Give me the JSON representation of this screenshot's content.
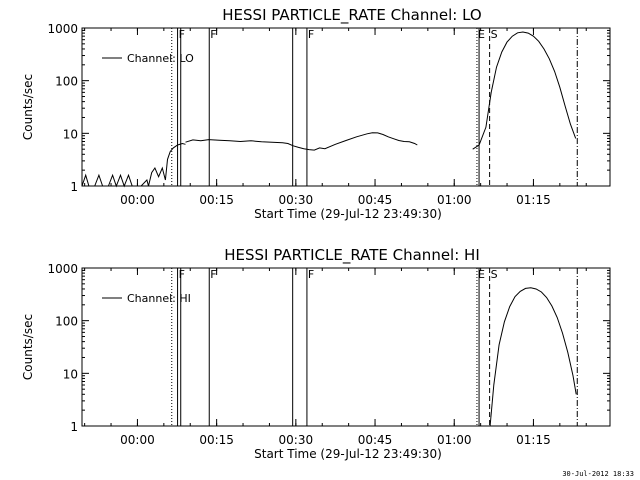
{
  "chart_data": [
    {
      "type": "line",
      "title": "HESSI PARTICLE_RATE Channel: LO",
      "xlabel": "Start Time (29-Jul-12 23:49:30)",
      "ylabel": "Counts/sec",
      "yscale": "log",
      "ylim": [
        1,
        1000
      ],
      "xlim_minutes_from_start": [
        0,
        100
      ],
      "x_ticks": [
        {
          "t": 10.5,
          "label": "00:00"
        },
        {
          "t": 25.5,
          "label": "00:15"
        },
        {
          "t": 40.5,
          "label": "00:30"
        },
        {
          "t": 55.5,
          "label": "00:45"
        },
        {
          "t": 70.5,
          "label": "01:00"
        },
        {
          "t": 85.5,
          "label": "01:15"
        }
      ],
      "y_ticks": [
        {
          "v": 1,
          "label": "1"
        },
        {
          "v": 10,
          "label": "10"
        },
        {
          "v": 100,
          "label": "100"
        },
        {
          "v": 1000,
          "label": "1000"
        }
      ],
      "legend": {
        "position": "top-left",
        "entries": [
          "Channel: LO"
        ]
      },
      "markers": [
        {
          "t": 17.0,
          "style": "dotted",
          "label": ""
        },
        {
          "t": 18.1,
          "style": "solid",
          "label": "F"
        },
        {
          "t": 18.7,
          "style": "solid",
          "label": ""
        },
        {
          "t": 24.1,
          "style": "solid",
          "label": "F"
        },
        {
          "t": 39.9,
          "style": "solid",
          "label": ""
        },
        {
          "t": 42.6,
          "style": "solid",
          "label": "F"
        },
        {
          "t": 74.8,
          "style": "dotted",
          "label": "E"
        },
        {
          "t": 75.2,
          "style": "solid",
          "label": ""
        },
        {
          "t": 77.2,
          "style": "dashed",
          "label": "S"
        },
        {
          "t": 93.8,
          "style": "dashdot",
          "label": ""
        }
      ],
      "series": [
        {
          "name": "Channel: LO",
          "segments": [
            [
              [
                0,
                1
              ],
              [
                0.7,
                1.6
              ],
              [
                1.3,
                1
              ],
              [
                2.4,
                1
              ],
              [
                3.2,
                1.6
              ],
              [
                3.9,
                1
              ],
              [
                5,
                1
              ],
              [
                5.8,
                1.6
              ],
              [
                6.5,
                1
              ],
              [
                7.3,
                1.6
              ],
              [
                8,
                1
              ],
              [
                8.8,
                1.6
              ],
              [
                9.5,
                1
              ],
              [
                11.2,
                1
              ],
              [
                12.3,
                1.3
              ],
              [
                12.6,
                1
              ],
              [
                13.2,
                1.8
              ],
              [
                13.8,
                2.2
              ],
              [
                14.5,
                1.5
              ],
              [
                15.2,
                2.2
              ],
              [
                15.8,
                1.3
              ],
              [
                16.2,
                3.2
              ],
              [
                16.7,
                4.5
              ],
              [
                17.3,
                5.3
              ],
              [
                18.1,
                6
              ],
              [
                19,
                6.4
              ],
              [
                19.6,
                6.2
              ]
            ],
            [
              [
                19.6,
                6.8
              ],
              [
                21,
                7.5
              ],
              [
                22.5,
                7.2
              ],
              [
                24,
                7.6
              ],
              [
                26,
                7.4
              ],
              [
                28,
                7.2
              ],
              [
                30,
                7
              ],
              [
                32,
                7.2
              ],
              [
                34,
                6.9
              ],
              [
                36,
                6.8
              ],
              [
                38,
                6.6
              ],
              [
                39,
                6.4
              ],
              [
                40,
                5.8
              ],
              [
                41,
                5.4
              ],
              [
                42,
                5.1
              ],
              [
                43,
                4.9
              ],
              [
                44,
                4.8
              ],
              [
                45,
                5.3
              ],
              [
                46,
                5.1
              ],
              [
                48,
                6.2
              ],
              [
                50,
                7.3
              ],
              [
                52,
                8.6
              ],
              [
                54,
                9.8
              ],
              [
                55,
                10.3
              ],
              [
                56,
                10.2
              ],
              [
                57,
                9.5
              ],
              [
                58,
                8.6
              ],
              [
                59,
                7.9
              ],
              [
                60,
                7.3
              ],
              [
                61,
                7
              ],
              [
                62,
                6.9
              ],
              [
                63,
                6.4
              ],
              [
                63.5,
                6
              ]
            ],
            [
              [
                74,
                5
              ],
              [
                75.2,
                6
              ],
              [
                76.5,
                13
              ],
              [
                77.5,
                60
              ],
              [
                78.5,
                180
              ],
              [
                79.5,
                350
              ],
              [
                80.5,
                540
              ],
              [
                81.5,
                700
              ],
              [
                82.5,
                810
              ],
              [
                83.5,
                840
              ],
              [
                84.5,
                800
              ],
              [
                85.5,
                700
              ],
              [
                86.5,
                560
              ],
              [
                87.5,
                400
              ],
              [
                88.5,
                260
              ],
              [
                89.5,
                150
              ],
              [
                90.5,
                75
              ],
              [
                91.5,
                33
              ],
              [
                92.5,
                15
              ],
              [
                93.5,
                8
              ]
            ]
          ]
        }
      ]
    },
    {
      "type": "line",
      "title": "HESSI PARTICLE_RATE Channel: HI",
      "xlabel": "Start Time (29-Jul-12 23:49:30)",
      "ylabel": "Counts/sec",
      "yscale": "log",
      "ylim": [
        1,
        1000
      ],
      "xlim_minutes_from_start": [
        0,
        100
      ],
      "x_ticks": [
        {
          "t": 10.5,
          "label": "00:00"
        },
        {
          "t": 25.5,
          "label": "00:15"
        },
        {
          "t": 40.5,
          "label": "00:30"
        },
        {
          "t": 55.5,
          "label": "00:45"
        },
        {
          "t": 70.5,
          "label": "01:00"
        },
        {
          "t": 85.5,
          "label": "01:15"
        }
      ],
      "y_ticks": [
        {
          "v": 1,
          "label": "1"
        },
        {
          "v": 10,
          "label": "10"
        },
        {
          "v": 100,
          "label": "100"
        },
        {
          "v": 1000,
          "label": "1000"
        }
      ],
      "legend": {
        "position": "top-left",
        "entries": [
          "Channel: HI"
        ]
      },
      "markers": [
        {
          "t": 17.0,
          "style": "dotted",
          "label": ""
        },
        {
          "t": 18.1,
          "style": "solid",
          "label": "F"
        },
        {
          "t": 18.7,
          "style": "solid",
          "label": ""
        },
        {
          "t": 24.1,
          "style": "solid",
          "label": "F"
        },
        {
          "t": 39.9,
          "style": "solid",
          "label": ""
        },
        {
          "t": 42.6,
          "style": "solid",
          "label": "F"
        },
        {
          "t": 74.8,
          "style": "dotted",
          "label": "E"
        },
        {
          "t": 75.2,
          "style": "solid",
          "label": ""
        },
        {
          "t": 77.2,
          "style": "dashed",
          "label": "S"
        },
        {
          "t": 93.8,
          "style": "dashdot",
          "label": ""
        }
      ],
      "series": [
        {
          "name": "Channel: HI",
          "segments": [
            [
              [
                77.3,
                1
              ],
              [
                78,
                6
              ],
              [
                79,
                35
              ],
              [
                80,
                95
              ],
              [
                81,
                185
              ],
              [
                82,
                285
              ],
              [
                83,
                360
              ],
              [
                84,
                410
              ],
              [
                85,
                420
              ],
              [
                86,
                400
              ],
              [
                87,
                350
              ],
              [
                88,
                275
              ],
              [
                89,
                190
              ],
              [
                90,
                115
              ],
              [
                91,
                58
              ],
              [
                92,
                25
              ],
              [
                93,
                9
              ],
              [
                93.6,
                4
              ]
            ]
          ]
        }
      ]
    }
  ],
  "footer": {
    "date": "30-Jul-2012 18:33"
  }
}
